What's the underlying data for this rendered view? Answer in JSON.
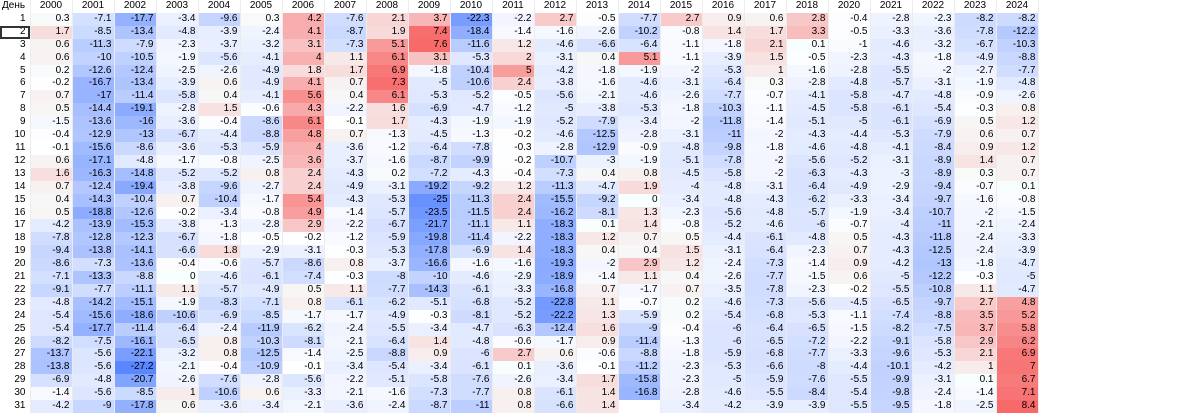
{
  "table": {
    "corner_label": "День",
    "years": [
      "2000",
      "2001",
      "2002",
      "2003",
      "2004",
      "2005",
      "2006",
      "2007",
      "2008",
      "2009",
      "2010",
      "2011",
      "2012",
      "2013",
      "2014",
      "2015",
      "2016",
      "2017",
      "2018",
      "2020",
      "2021",
      "2022",
      "2023",
      "2024"
    ],
    "days": [
      "1",
      "2",
      "3",
      "4",
      "5",
      "6",
      "7",
      "8",
      "9",
      "10",
      "11",
      "12",
      "13",
      "14",
      "15",
      "16",
      "17",
      "18",
      "19",
      "20",
      "21",
      "22",
      "23",
      "24",
      "25",
      "26",
      "27",
      "28",
      "29",
      "30",
      "31"
    ],
    "selected_cell": {
      "row": 1,
      "col": -1
    },
    "rows": [
      [
        "0.3",
        "-7.1",
        "-17.7",
        "-3.4",
        "-9.6",
        "0.3",
        "4.2",
        "-7.6",
        "2.1",
        "3.7",
        "-22.3",
        "-2.2",
        "2.7",
        "-0.5",
        "-7.7",
        "2.7",
        "0.9",
        "0.6",
        "2.8",
        "-0.4",
        "-2.8",
        "-2.3",
        "-8.2",
        "-8.2"
      ],
      [
        "1.7",
        "-8.5",
        "-13.4",
        "-4.8",
        "-3.9",
        "-2.4",
        "4.1",
        "-8.7",
        "1.9",
        "7.4",
        "-18.4",
        "-1.4",
        "-1.6",
        "-2.6",
        "-10.2",
        "-0.8",
        "1.4",
        "1.7",
        "3.3",
        "-0.5",
        "-3.3",
        "-3.6",
        "-7.8",
        "-12.2"
      ],
      [
        "0.6",
        "-11.3",
        "-7.9",
        "-2.3",
        "-3.7",
        "-3.2",
        "3.1",
        "-7.3",
        "5.1",
        "7.6",
        "-11.6",
        "1.2",
        "-4.6",
        "-6.6",
        "-6.4",
        "-1.1",
        "-1.8",
        "2.1",
        "0.1",
        "-1",
        "-4.6",
        "-3.2",
        "-6.7",
        "-10.3"
      ],
      [
        "0.6",
        "-10",
        "-10.5",
        "-1.9",
        "-5.6",
        "-4.1",
        "4",
        "1.1",
        "6.1",
        "3.1",
        "-5.3",
        "2",
        "-3.1",
        "0.4",
        "5.1",
        "-1.1",
        "-3.9",
        "1.5",
        "-0.5",
        "-2.3",
        "-4.3",
        "-1.8",
        "-4.9",
        "-8.8"
      ],
      [
        "0.2",
        "-12.6",
        "-12.4",
        "-2.5",
        "-2.6",
        "-4.9",
        "1.8",
        "1.7",
        "6.9",
        "-1.8",
        "-10.4",
        "5",
        "-4.2",
        "-1.8",
        "-1.9",
        "-2",
        "-5.3",
        "1",
        "-1.6",
        "-2.8",
        "-5.5",
        "-2",
        "-2.7",
        "-7.7"
      ],
      [
        "-0.2",
        "-16.7",
        "-13.4",
        "-3.9",
        "0.6",
        "-4.9",
        "4.1",
        "0.7",
        "7.3",
        "-5",
        "-10.6",
        "2.4",
        "-3.8",
        "-1.6",
        "-4.6",
        "-3.1",
        "-6.4",
        "0.3",
        "-2.8",
        "-4.8",
        "-5.7",
        "-3.1",
        "-1.9",
        "-4.8"
      ],
      [
        "0.7",
        "-17",
        "-11.4",
        "-5.8",
        "0.4",
        "-4.1",
        "5.6",
        "0.4",
        "6.1",
        "-5.3",
        "-5.2",
        "-0.5",
        "-5.6",
        "-2.1",
        "-4.6",
        "-2.6",
        "-7.7",
        "-0.7",
        "-4.1",
        "-5.8",
        "-4.7",
        "-4.8",
        "-0.9",
        "-2.6"
      ],
      [
        "0.5",
        "-14.4",
        "-19.1",
        "-2.8",
        "1.5",
        "-0.6",
        "4.3",
        "-2.2",
        "1.6",
        "-6.9",
        "-4.7",
        "-1.2",
        "-5",
        "-3.8",
        "-5.3",
        "-1.8",
        "-10.3",
        "-1.1",
        "-4.5",
        "-5.8",
        "-6.1",
        "-5.4",
        "-0.3",
        "0.8"
      ],
      [
        "-1.5",
        "-13.6",
        "-16",
        "-3.6",
        "-0.4",
        "-8.6",
        "6.1",
        "-0.1",
        "1.7",
        "-4.3",
        "-1.9",
        "-1.9",
        "-5.2",
        "-7.9",
        "-3.4",
        "-2",
        "-11.8",
        "-1.4",
        "-5.1",
        "-5",
        "-6.1",
        "-6.9",
        "0.5",
        "1.2"
      ],
      [
        "-0.4",
        "-12.9",
        "-13",
        "-6.7",
        "-4.4",
        "-8.8",
        "4.8",
        "0.7",
        "-1.3",
        "-4.5",
        "-1.3",
        "-0.2",
        "-4.6",
        "-12.5",
        "-2.8",
        "-3.1",
        "-11",
        "-2",
        "-4.3",
        "-4.4",
        "-5.3",
        "-7.9",
        "0.6",
        "0.7"
      ],
      [
        "-0.1",
        "-15.6",
        "-8.6",
        "-3.6",
        "-5.3",
        "-5.9",
        "4",
        "-3.6",
        "-1.2",
        "-6.4",
        "-7.8",
        "-0.3",
        "-2.8",
        "-12.9",
        "-0.9",
        "-4.8",
        "-9.8",
        "-1.8",
        "-4.6",
        "-4.8",
        "-4.1",
        "-8.4",
        "0.9",
        "1.2"
      ],
      [
        "0.6",
        "-17.1",
        "-4.8",
        "-1.7",
        "-0.8",
        "-2.5",
        "3.6",
        "-3.7",
        "-1.6",
        "-8.7",
        "-9.9",
        "-0.2",
        "-10.7",
        "-3",
        "-1.9",
        "-5.1",
        "-7.8",
        "-2",
        "-5.6",
        "-5.2",
        "-3.1",
        "-8.9",
        "1.4",
        "0.7"
      ],
      [
        "1.6",
        "-16.3",
        "-14.8",
        "-5.2",
        "-5.2",
        "0.8",
        "2.4",
        "-4.3",
        "0.2",
        "-7.2",
        "-4.3",
        "-0.4",
        "-7.3",
        "0.4",
        "0.8",
        "-4.5",
        "-5.8",
        "-2",
        "-6.3",
        "-4.3",
        "-3",
        "-8.9",
        "0.3",
        "0.7"
      ],
      [
        "0.7",
        "-12.4",
        "-19.4",
        "-3.8",
        "-9.6",
        "-2.7",
        "2.4",
        "-4.9",
        "-3.1",
        "-19.2",
        "-9.2",
        "1.2",
        "-11.3",
        "-4.7",
        "1.9",
        "-4",
        "-4.8",
        "-3.1",
        "-6.4",
        "-4.9",
        "-2.9",
        "-9.4",
        "-0.7",
        "0.1"
      ],
      [
        "0.4",
        "-14.3",
        "-10.4",
        "0.7",
        "-10.4",
        "-1.7",
        "5.4",
        "-4.3",
        "-5.3",
        "-25",
        "-11.3",
        "2.4",
        "-15.5",
        "-9.2",
        "0",
        "-3.4",
        "-4.8",
        "-4.3",
        "-6.2",
        "-3.3",
        "-3.4",
        "-9.7",
        "-1.6",
        "-0.8"
      ],
      [
        "0.5",
        "-18.8",
        "-12.6",
        "-0.2",
        "-3.4",
        "-0.8",
        "4.9",
        "-1.4",
        "-5.7",
        "-23.5",
        "-11.5",
        "2.4",
        "-16.2",
        "-8.1",
        "1.3",
        "-2.3",
        "-5.6",
        "-4.8",
        "-5.7",
        "-1.9",
        "-3.4",
        "-10.7",
        "-2",
        "-1.5"
      ],
      [
        "-4.2",
        "-13.9",
        "-15.3",
        "-3.8",
        "-1.3",
        "-2.8",
        "2.9",
        "-2.2",
        "-6.7",
        "-21.7",
        "-11.1",
        "1.1",
        "-18.3",
        "0.1",
        "1.4",
        "-0.8",
        "-5.2",
        "-4.6",
        "-6",
        "-0.7",
        "-4",
        "-11",
        "-2.1",
        "-2.4"
      ],
      [
        "-7.8",
        "-12.8",
        "-12.3",
        "-6.7",
        "-1.8",
        "-0.5",
        "-0.2",
        "-1.2",
        "-5.9",
        "-19.8",
        "-11.4",
        "-2.2",
        "-18.3",
        "1.2",
        "0.7",
        "0.5",
        "-4.4",
        "-6.1",
        "-4.8",
        "0.5",
        "-4.3",
        "-11.8",
        "-2.4",
        "-3.3"
      ],
      [
        "-9.4",
        "-13.8",
        "-14.1",
        "-6.6",
        "1.8",
        "-2.9",
        "-3.1",
        "-0.3",
        "-5.3",
        "-17.8",
        "-6.9",
        "1.4",
        "-18.3",
        "0.4",
        "0.4",
        "1.5",
        "-3.1",
        "-6.4",
        "-2.3",
        "0.7",
        "-4.3",
        "-12.5",
        "-2.4",
        "-3.9"
      ],
      [
        "-8.6",
        "-7.3",
        "-13.6",
        "-0.4",
        "-0.6",
        "-5.7",
        "-8.6",
        "0.8",
        "-3.7",
        "-16.6",
        "-1.6",
        "-1.6",
        "-19.3",
        "-2",
        "2.9",
        "1.2",
        "-2.4",
        "-7.3",
        "-1.4",
        "0.9",
        "-4.2",
        "-13",
        "-1.8",
        "-4.7"
      ],
      [
        "-7.1",
        "-13.3",
        "-8.8",
        "0",
        "-4.6",
        "-6.1",
        "-7.4",
        "-0.3",
        "-8",
        "-10",
        "-4.6",
        "-2.9",
        "-18.9",
        "-1.4",
        "1.1",
        "0.4",
        "-2.6",
        "-7.7",
        "-1.5",
        "0.6",
        "-5",
        "-12.2",
        "-0.3",
        "-5"
      ],
      [
        "-9.1",
        "-7.7",
        "-11.1",
        "1.1",
        "-5.7",
        "-4.9",
        "0.5",
        "1.1",
        "-7.7",
        "-14.3",
        "-6.1",
        "-3.3",
        "-16.8",
        "0.7",
        "-1.7",
        "0.7",
        "-3.5",
        "-7.8",
        "-2.3",
        "-0.2",
        "-5.5",
        "-10.8",
        "1.1",
        "-4.7"
      ],
      [
        "-4.8",
        "-14.2",
        "-15.1",
        "-1.9",
        "-8.3",
        "-7.1",
        "0.8",
        "-6.1",
        "-6.2",
        "-5.1",
        "-6.8",
        "-5.2",
        "-22.8",
        "1.1",
        "-0.7",
        "0.2",
        "-4.6",
        "-7.3",
        "-5.6",
        "-4.5",
        "-6.5",
        "-9.7",
        "2.7",
        "4.8"
      ],
      [
        "-5.4",
        "-15.6",
        "-18.6",
        "-10.6",
        "-6.9",
        "-8.5",
        "-1.7",
        "-1.7",
        "-4.9",
        "-0.3",
        "-8.1",
        "-5.2",
        "-22.2",
        "1.3",
        "-5.9",
        "0.2",
        "-5.4",
        "-6.8",
        "-5.3",
        "-1.1",
        "-7.4",
        "-8.8",
        "3.5",
        "5.2"
      ],
      [
        "-5.4",
        "-17.7",
        "-11.4",
        "-6.4",
        "-2.4",
        "-11.9",
        "-6.2",
        "-2.4",
        "-5.5",
        "-3.4",
        "-4.7",
        "-6.3",
        "-12.4",
        "1.6",
        "-9",
        "-0.4",
        "-6",
        "-6.4",
        "-6.5",
        "-1.5",
        "-8.2",
        "-7.5",
        "3.7",
        "5.8"
      ],
      [
        "-8.2",
        "-7.5",
        "-16.1",
        "-6.5",
        "0.8",
        "-10.3",
        "-8.1",
        "-2.1",
        "-6.4",
        "1.4",
        "-4.8",
        "-0.6",
        "-1.7",
        "0.9",
        "-11.4",
        "-1.3",
        "-6",
        "-6.5",
        "-7.2",
        "-2.2",
        "-9.1",
        "-5.8",
        "2.9",
        "6.2"
      ],
      [
        "-13.7",
        "-5.6",
        "-22.1",
        "-3.2",
        "0.8",
        "-12.5",
        "-1.4",
        "-2.5",
        "-8.8",
        "0.9",
        "-6",
        "2.7",
        "0.6",
        "-0.6",
        "-8.8",
        "-1.8",
        "-5.9",
        "-6.8",
        "-7.7",
        "-3.3",
        "-9.6",
        "-5.3",
        "2.1",
        "6.9"
      ],
      [
        "-13.8",
        "-5.6",
        "-27.2",
        "-2.1",
        "-0.4",
        "-10.9",
        "-0.1",
        "-3.4",
        "-5.4",
        "-3.4",
        "-6.1",
        "0.1",
        "-3.6",
        "-0.1",
        "-11.2",
        "-2.3",
        "-5.3",
        "-6.6",
        "-8",
        "-4.4",
        "-10.1",
        "-4.2",
        "1",
        "7"
      ],
      [
        "-6.9",
        "-4.8",
        "-20.7",
        "-2.6",
        "-7.6",
        "-2.8",
        "-5.6",
        "-2.2",
        "-5.1",
        "-5.8",
        "-7.6",
        "-2.6",
        "-3.4",
        "1.7",
        "-15.8",
        "-2.3",
        "-5",
        "-5.9",
        "-7.6",
        "-5.5",
        "-9.9",
        "-3.1",
        "0.1",
        "6.7"
      ],
      [
        "-1.4",
        "-5.6",
        "-8.5",
        "1",
        "-10.6",
        "0.6",
        "-3.3",
        "-2.1",
        "-1.6",
        "-7.3",
        "-7.7",
        "0.8",
        "-6.1",
        "1.4",
        "-16.8",
        "-2.8",
        "-4.6",
        "-5.5",
        "-8.4",
        "-5.4",
        "-9.8",
        "-2.4",
        "-1.4",
        "7.1"
      ],
      [
        "-4.2",
        "-9",
        "-17.8",
        "0.6",
        "-3.6",
        "-3.4",
        "-2.1",
        "-3.6",
        "-2.4",
        "-8.7",
        "-11",
        "0.8",
        "-6.6",
        "1.4",
        "",
        "-3.4",
        "-4.2",
        "-3.9",
        "-3.9",
        "-5.5",
        "-9.5",
        "-1.8",
        "-2.5",
        "8.4"
      ]
    ]
  }
}
